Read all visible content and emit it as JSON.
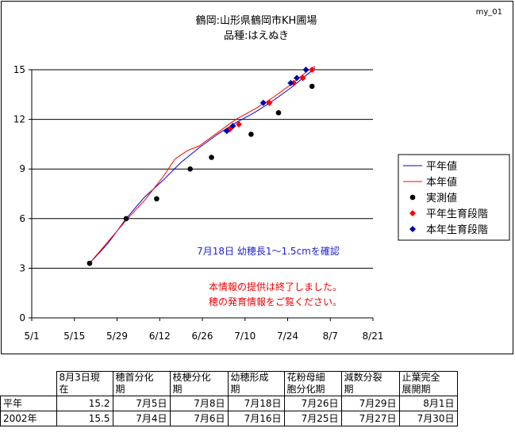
{
  "chart_data": {
    "type": "line",
    "title_line1": "鶴岡:山形県鶴岡市KH圃場",
    "title_line2": "品種:はえぬき",
    "corner_label": "my_01",
    "x_ticks": [
      "5/1",
      "5/15",
      "5/29",
      "6/12",
      "6/26",
      "7/10",
      "7/24",
      "8/7",
      "8/21"
    ],
    "y_ticks": [
      "0",
      "3",
      "6",
      "9",
      "12",
      "15"
    ],
    "ylim": [
      0,
      15
    ],
    "xlim": [
      "5/1",
      "8/21"
    ],
    "grid": "horizontal",
    "legend_position": "right",
    "legend": [
      {
        "name": "平年値",
        "kind": "line",
        "color": "#0000cc"
      },
      {
        "name": "本年値",
        "kind": "line",
        "color": "#ff0000"
      },
      {
        "name": "実測値",
        "kind": "dot",
        "color": "#000000"
      },
      {
        "name": "平年生育段階",
        "kind": "diamond",
        "color": "#ff0000"
      },
      {
        "name": "本年生育段階",
        "kind": "diamond",
        "color": "#0000aa"
      }
    ],
    "series": [
      {
        "name": "平年値",
        "color": "#0000cc",
        "points": [
          [
            "5/20",
            3.3
          ],
          [
            "5/26",
            4.5
          ],
          [
            "6/1",
            6.0
          ],
          [
            "6/7",
            7.3
          ],
          [
            "6/13",
            8.3
          ],
          [
            "6/19",
            9.4
          ],
          [
            "6/25",
            10.3
          ],
          [
            "7/1",
            11.1
          ],
          [
            "7/7",
            11.8
          ],
          [
            "7/13",
            12.4
          ],
          [
            "7/19",
            13.1
          ],
          [
            "7/25",
            13.9
          ],
          [
            "7/31",
            14.8
          ],
          [
            "8/2",
            15.1
          ]
        ]
      },
      {
        "name": "本年値",
        "color": "#ff0000",
        "points": [
          [
            "5/20",
            3.3
          ],
          [
            "5/26",
            4.6
          ],
          [
            "6/1",
            5.9
          ],
          [
            "6/7",
            7.1
          ],
          [
            "6/13",
            8.5
          ],
          [
            "6/17",
            9.6
          ],
          [
            "6/21",
            10.1
          ],
          [
            "6/25",
            10.4
          ],
          [
            "7/1",
            11.2
          ],
          [
            "7/7",
            12.0
          ],
          [
            "7/13",
            12.6
          ],
          [
            "7/19",
            13.3
          ],
          [
            "7/25",
            14.1
          ],
          [
            "7/31",
            15.0
          ],
          [
            "8/2",
            15.2
          ]
        ]
      },
      {
        "name": "実測値",
        "color": "#000000",
        "points": [
          [
            "5/20",
            3.3
          ],
          [
            "6/1",
            6.0
          ],
          [
            "6/11",
            7.2
          ],
          [
            "6/22",
            9.0
          ],
          [
            "6/29",
            9.7
          ],
          [
            "7/12",
            11.1
          ],
          [
            "7/21",
            12.4
          ],
          [
            "8/1",
            14.0
          ]
        ]
      },
      {
        "name": "平年生育段階",
        "color": "#ff0000",
        "points": [
          [
            "7/5",
            11.4
          ],
          [
            "7/8",
            11.7
          ],
          [
            "7/18",
            13.0
          ],
          [
            "7/26",
            14.2
          ],
          [
            "7/29",
            14.5
          ],
          [
            "8/1",
            15.0
          ]
        ]
      },
      {
        "name": "本年生育段階",
        "color": "#0000aa",
        "points": [
          [
            "7/4",
            11.3
          ],
          [
            "7/6",
            11.6
          ],
          [
            "7/16",
            13.0
          ],
          [
            "7/25",
            14.2
          ],
          [
            "7/27",
            14.5
          ],
          [
            "7/30",
            15.0
          ]
        ]
      }
    ],
    "annotations": {
      "note_blue": "7月18日 幼穂長1～1.5cmを確認",
      "note_red_1": "本情報の提供は終了しました。",
      "note_red_2": "穂の発育情報をご覧ください。"
    }
  },
  "table": {
    "headers": [
      [
        "8月3日現",
        "在"
      ],
      [
        "穂首分化",
        "期"
      ],
      [
        "枝梗分化",
        "期"
      ],
      [
        "幼穂形成",
        "期"
      ],
      [
        "花粉母細",
        "胞分化期"
      ],
      [
        "減数分裂",
        "期"
      ],
      [
        "止葉完全",
        "展開期"
      ]
    ],
    "rows": [
      {
        "label": "平年",
        "values": [
          "15.2",
          "7月5日",
          "7月8日",
          "7月18日",
          "7月26日",
          "7月29日",
          "8月1日"
        ]
      },
      {
        "label": "2002年",
        "values": [
          "15.5",
          "7月4日",
          "7月6日",
          "7月16日",
          "7月25日",
          "7月27日",
          "7月30日"
        ]
      }
    ]
  }
}
